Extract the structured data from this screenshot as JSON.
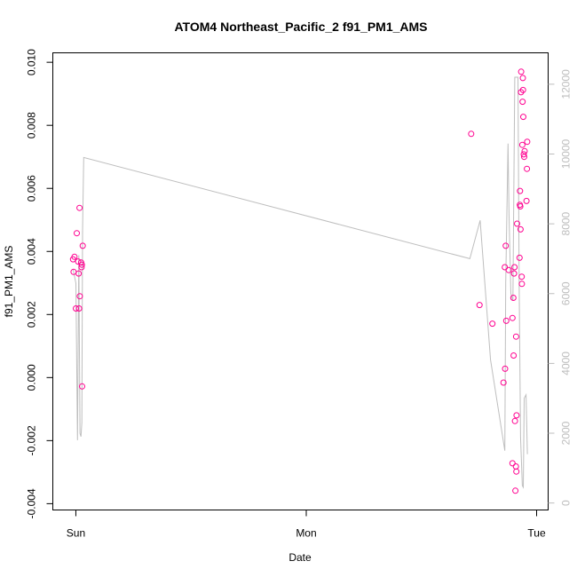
{
  "chart_data": {
    "type": "scatter",
    "title": "ATOM4 Northeast_Pacific_2 f91_PM1_AMS",
    "xlabel": "Date",
    "ylabel": "f91_PM1_AMS",
    "x_ticks": [
      "Sun",
      "Mon",
      "Tue"
    ],
    "x_tick_values": [
      0,
      1,
      2
    ],
    "xlim": [
      -0.1,
      2.05
    ],
    "ylim": [
      -0.0042,
      0.0103
    ],
    "y_ticks": [
      "-0.004",
      "-0.002",
      "0.000",
      "0.002",
      "0.004",
      "0.006",
      "0.008",
      "0.010"
    ],
    "y_tick_values": [
      -0.004,
      -0.002,
      0.0,
      0.002,
      0.004,
      0.006,
      0.008,
      0.01
    ],
    "y2lim": [
      -200,
      12900
    ],
    "y2_ticks": [
      "0",
      "2000",
      "4000",
      "6000",
      "8000",
      "10000",
      "12000"
    ],
    "y2_tick_values": [
      0,
      2000,
      4000,
      6000,
      8000,
      10000,
      12000
    ],
    "colors": {
      "points": "#ff0090",
      "line": "#bebebe",
      "axis": "#000000",
      "axis_right": "#bdbdbd"
    },
    "series": [
      {
        "kind": "points",
        "axis": "left",
        "points": [
          [
            -0.012,
            0.00375
          ],
          [
            -0.01,
            0.00335
          ],
          [
            -0.006,
            0.00383
          ],
          [
            0.0,
            0.00219
          ],
          [
            0.004,
            0.00458
          ],
          [
            0.01,
            0.00368
          ],
          [
            0.012,
            0.0033
          ],
          [
            0.014,
            0.00219
          ],
          [
            0.016,
            0.00538
          ],
          [
            0.017,
            0.00258
          ],
          [
            0.023,
            0.00365
          ],
          [
            0.025,
            0.0035
          ],
          [
            0.026,
            0.00358
          ],
          [
            0.027,
            -0.00028
          ],
          [
            0.03,
            0.00418
          ],
          [
            1.716,
            0.00773
          ],
          [
            1.752,
            0.0023
          ],
          [
            1.808,
            0.00171
          ],
          [
            1.856,
            -0.00016
          ],
          [
            1.862,
            0.0035
          ],
          [
            1.863,
            0.00028
          ],
          [
            1.866,
            0.00418
          ],
          [
            1.868,
            0.0018
          ],
          [
            1.879,
            0.00341
          ],
          [
            1.895,
            -0.00272
          ],
          [
            1.895,
            0.00189
          ],
          [
            1.899,
            0.00253
          ],
          [
            1.9,
            0.0007
          ],
          [
            1.902,
            0.0033
          ],
          [
            1.904,
            0.0035
          ],
          [
            1.906,
            -0.00138
          ],
          [
            1.908,
            -0.00359
          ],
          [
            1.91,
            -0.00282
          ],
          [
            1.911,
            0.0013
          ],
          [
            1.912,
            -0.00298
          ],
          [
            1.913,
            -0.0012
          ],
          [
            1.915,
            0.00488
          ],
          [
            1.926,
            0.0038
          ],
          [
            1.927,
            0.00548
          ],
          [
            1.928,
            0.00592
          ],
          [
            1.929,
            0.00543
          ],
          [
            1.93,
            0.0047
          ],
          [
            1.932,
            0.00905
          ],
          [
            1.933,
            0.0097
          ],
          [
            1.935,
            0.0032
          ],
          [
            1.936,
            0.00297
          ],
          [
            1.938,
            0.00738
          ],
          [
            1.939,
            0.00875
          ],
          [
            1.94,
            0.0095
          ],
          [
            1.941,
            0.00912
          ],
          [
            1.942,
            0.00827
          ],
          [
            1.944,
            0.00708
          ],
          [
            1.946,
            0.007
          ],
          [
            1.948,
            0.00718
          ],
          [
            1.956,
            0.0056
          ],
          [
            1.958,
            0.00662
          ],
          [
            1.959,
            0.00748
          ]
        ]
      },
      {
        "kind": "line",
        "axis": "right",
        "points": [
          [
            -0.012,
            6700
          ],
          [
            0.0,
            6300
          ],
          [
            0.007,
            1800
          ],
          [
            0.013,
            7100
          ],
          [
            0.018,
            2000
          ],
          [
            0.022,
            1900
          ],
          [
            0.026,
            2300
          ],
          [
            0.029,
            7800
          ],
          [
            0.034,
            9900
          ],
          [
            1.71,
            7000
          ],
          [
            1.755,
            8100
          ],
          [
            1.8,
            4100
          ],
          [
            1.862,
            1500
          ],
          [
            1.866,
            6300
          ],
          [
            1.876,
            10300
          ],
          [
            1.88,
            8300
          ],
          [
            1.888,
            6000
          ],
          [
            1.897,
            5800
          ],
          [
            1.905,
            12200
          ],
          [
            1.919,
            12200
          ],
          [
            1.924,
            6400
          ],
          [
            1.93,
            1900
          ],
          [
            1.938,
            500
          ],
          [
            1.942,
            450
          ],
          [
            1.946,
            3000
          ],
          [
            1.954,
            3100
          ],
          [
            1.96,
            1400
          ]
        ]
      }
    ]
  }
}
